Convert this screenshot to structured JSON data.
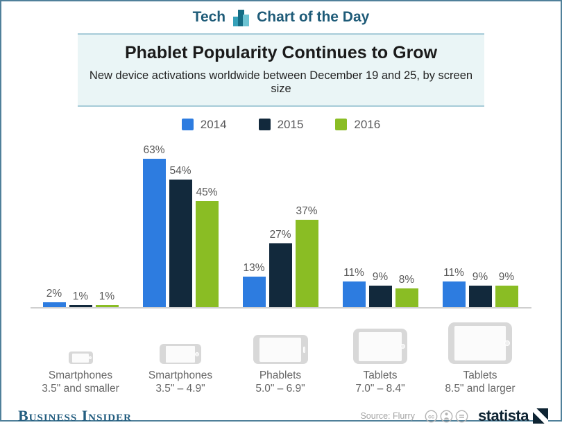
{
  "header": {
    "category_label": "Tech",
    "title": "Chart of the Day"
  },
  "title_block": {
    "title": "Phablet Popularity Continues to Grow",
    "subtitle": "New device activations worldwide between December 19 and 25, by screen size"
  },
  "chart_data": {
    "type": "bar",
    "title": "Phablet Popularity Continues to Grow",
    "subtitle": "New device activations worldwide between December 19 and 25, by screen size",
    "unit": "%",
    "categories": [
      "Smartphones 3.5\" and smaller",
      "Smartphones 3.5\" – 4.9\"",
      "Phablets 5.0\" – 6.9\"",
      "Tablets 7.0\" – 8.4\"",
      "Tablets 8.5\" and larger"
    ],
    "series": [
      {
        "name": "2014",
        "color": "#2d7ce0",
        "values": [
          2,
          63,
          13,
          11,
          11
        ]
      },
      {
        "name": "2015",
        "color": "#12293c",
        "values": [
          1,
          54,
          27,
          9,
          9
        ]
      },
      {
        "name": "2016",
        "color": "#8abd24",
        "values": [
          1,
          45,
          37,
          8,
          9
        ]
      }
    ],
    "value_labels": true,
    "legend_position": "top",
    "grid": false,
    "ylim": [
      0,
      70
    ]
  },
  "categories_row": [
    {
      "icon": "smartphone-small-icon",
      "line1": "Smartphones",
      "line2": "3.5\" and smaller"
    },
    {
      "icon": "smartphone-icon",
      "line1": "Smartphones",
      "line2": "3.5\" – 4.9\""
    },
    {
      "icon": "phablet-icon",
      "line1": "Phablets",
      "line2": "5.0\" – 6.9\""
    },
    {
      "icon": "tablet-small-icon",
      "line1": "Tablets",
      "line2": "7.0\" – 8.4\""
    },
    {
      "icon": "tablet-large-icon",
      "line1": "Tablets",
      "line2": "8.5\" and larger"
    }
  ],
  "footer": {
    "publisher": "Business Insider",
    "source_label": "Source: Flurry",
    "brand": "statista",
    "license": "CC BY-ND"
  },
  "colors": {
    "accent_header": "#1e5b78",
    "title_box_bg": "#eaf5f6",
    "title_box_border": "#a6cbd8",
    "outer_border": "#50809a",
    "baseline": "#cfcfcf",
    "label_gray": "#595959",
    "publisher_teal": "#245e80",
    "brand_navy": "#0e2433"
  }
}
